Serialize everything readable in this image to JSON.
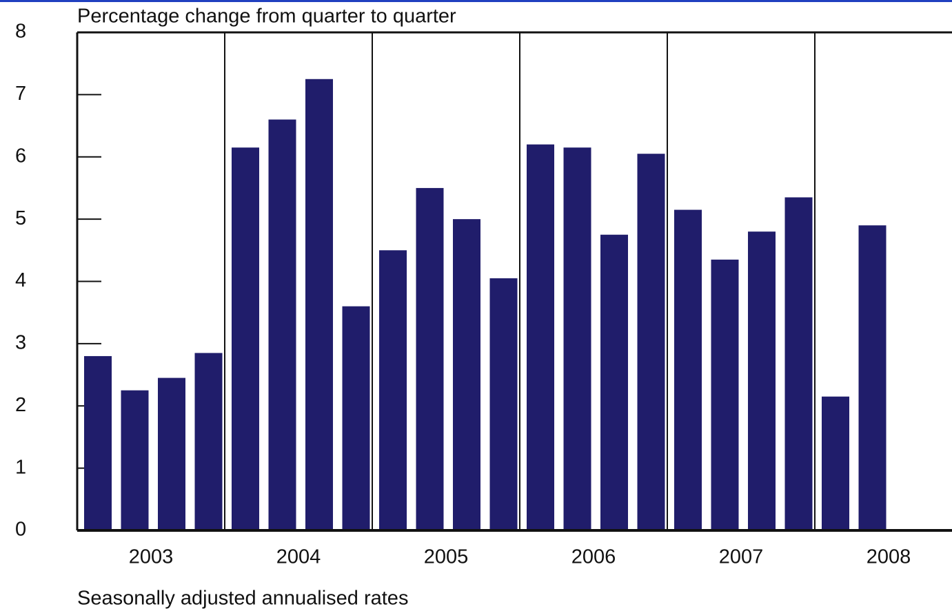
{
  "chart_data": {
    "type": "bar",
    "title": "Percentage change from quarter to quarter",
    "note": "Seasonally adjusted annualised rates",
    "color": "#201d6b",
    "quarters_per_group": 4,
    "groups": [
      {
        "label": "2003",
        "values": [
          2.8,
          2.25,
          2.45,
          2.85
        ]
      },
      {
        "label": "2004",
        "values": [
          6.15,
          6.6,
          7.25,
          3.6
        ]
      },
      {
        "label": "2005",
        "values": [
          4.5,
          5.5,
          5.0,
          4.05
        ]
      },
      {
        "label": "2006",
        "values": [
          6.2,
          6.15,
          4.75,
          6.05
        ]
      },
      {
        "label": "2007",
        "values": [
          5.15,
          4.35,
          4.8,
          5.35
        ]
      },
      {
        "label": "2008",
        "values": [
          2.15,
          4.9
        ]
      }
    ],
    "ylim": [
      0,
      8
    ],
    "yticks": [
      0,
      1,
      2,
      3,
      4,
      5,
      6,
      7,
      8
    ]
  }
}
